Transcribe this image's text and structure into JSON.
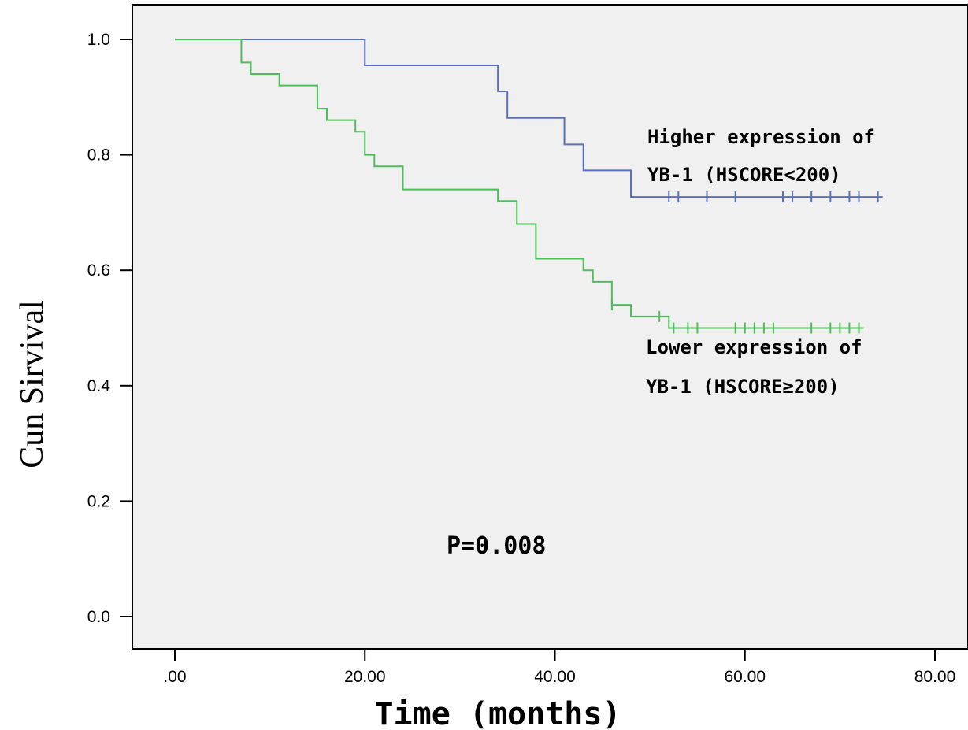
{
  "chart_data": {
    "type": "line",
    "title": "",
    "xlabel": "Time (months)",
    "ylabel": "Cun Sirvival",
    "xlim": [
      0,
      80
    ],
    "ylim": [
      0,
      1
    ],
    "x_ticks": [
      ".00",
      "20.00",
      "40.00",
      "60.00",
      "80.00"
    ],
    "y_ticks": [
      "0.0",
      "0.2",
      "0.4",
      "0.6",
      "0.8",
      "1.0"
    ],
    "grid": false,
    "p_value": "P=0.008",
    "series": [
      {
        "name": "Higher expression of YB-1 (HSCORE<200)",
        "label_lines": [
          "Higher expression of",
          "YB-1 (HSCORE<200)"
        ],
        "color": "#5a6fbf",
        "steps": [
          [
            0,
            1.0
          ],
          [
            20,
            0.955
          ],
          [
            34,
            0.91
          ],
          [
            35,
            0.864
          ],
          [
            41,
            0.818
          ],
          [
            43,
            0.773
          ],
          [
            48,
            0.727
          ],
          [
            74.5,
            0.727
          ]
        ],
        "censored": [
          52,
          53,
          56,
          59,
          64,
          65,
          67,
          69,
          71,
          72,
          74
        ]
      },
      {
        "name": "Lower expression of YB-1 (HSCORE≥200)",
        "label_lines": [
          "Lower expression of",
          "YB-1 (HSCORE≥200)"
        ],
        "color": "#4dbf5a",
        "steps": [
          [
            0,
            1.0
          ],
          [
            7,
            0.96
          ],
          [
            8,
            0.94
          ],
          [
            11,
            0.92
          ],
          [
            15,
            0.88
          ],
          [
            16,
            0.86
          ],
          [
            19,
            0.84
          ],
          [
            20,
            0.8
          ],
          [
            21,
            0.78
          ],
          [
            24,
            0.74
          ],
          [
            34,
            0.72
          ],
          [
            36,
            0.68
          ],
          [
            38,
            0.62
          ],
          [
            43,
            0.6
          ],
          [
            44,
            0.58
          ],
          [
            46,
            0.54
          ],
          [
            48,
            0.52
          ],
          [
            52,
            0.5
          ],
          [
            72.5,
            0.5
          ]
        ],
        "censored": [
          46,
          51,
          52.5,
          54,
          55,
          59,
          60,
          61,
          62,
          63,
          67,
          69,
          70,
          71,
          72
        ]
      }
    ]
  }
}
